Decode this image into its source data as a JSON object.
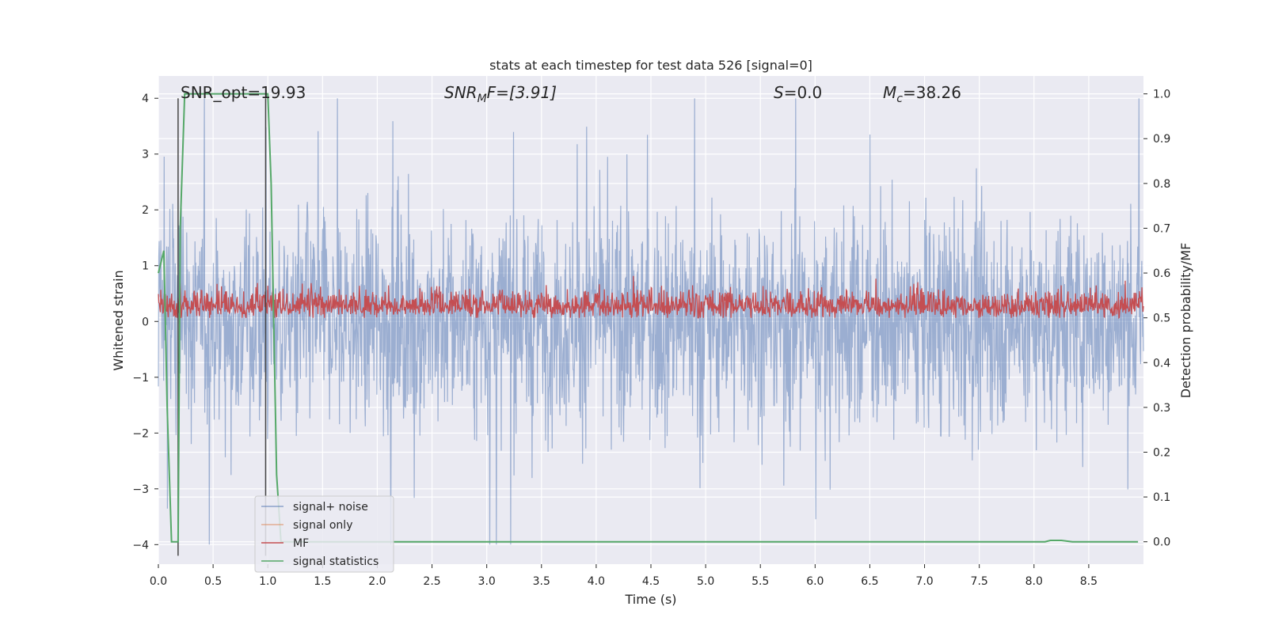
{
  "chart_data": {
    "type": "line",
    "title": "stats at each timestep for test data 526 [signal=0]",
    "xlabel": "Time (s)",
    "ylabel_left": "Whitened strain",
    "ylabel_right": "Detection probability/MF",
    "xlim": [
      0.0,
      9.0
    ],
    "ylim_left": [
      -4.35,
      4.4
    ],
    "ylim_right": [
      -0.05,
      1.04
    ],
    "x_ticks": [
      "0.0",
      "0.5",
      "1.0",
      "1.5",
      "2.0",
      "2.5",
      "3.0",
      "3.5",
      "4.0",
      "4.5",
      "5.0",
      "5.5",
      "6.0",
      "6.5",
      "7.0",
      "7.5",
      "8.0",
      "8.5"
    ],
    "y_ticks_left": [
      "4",
      "3",
      "2",
      "1",
      "0",
      "−1",
      "−2",
      "−3",
      "−4"
    ],
    "y_ticks_right": [
      "1.0",
      "0.9",
      "0.8",
      "0.7",
      "0.6",
      "0.5",
      "0.4",
      "0.3",
      "0.2",
      "0.1",
      "0.0"
    ],
    "annotations": {
      "snr_opt": "SNR_opt=19.93",
      "snr_mf_main": "SNR",
      "snr_mf_sub": "M",
      "snr_mf_rest": "F=[3.91]",
      "s_var": "S",
      "s_rest": "=0.0",
      "mc_main": "M",
      "mc_sub": "c",
      "mc_rest": "=38.26"
    },
    "vertical_lines": [
      0.18,
      0.98
    ],
    "series": [
      {
        "name": "signal+ noise",
        "color": "#4c72b0",
        "axis": "left",
        "noise_amplitude": 4.0
      },
      {
        "name": "signal only",
        "color": "#dd8452",
        "axis": "left",
        "values": []
      },
      {
        "name": "MF",
        "color": "#c44e52",
        "axis": "right",
        "range": [
          0.5,
          0.61
        ]
      },
      {
        "name": "signal statistics",
        "color": "#55a868",
        "axis": "right",
        "x": [
          0.0,
          0.05,
          0.08,
          0.12,
          0.18,
          0.2,
          0.24,
          0.28,
          0.35,
          0.5,
          0.75,
          0.97,
          1.0,
          1.03,
          1.08,
          1.12,
          1.2,
          2.0,
          4.0,
          6.0,
          7.0,
          7.5,
          8.1,
          8.15,
          8.2,
          8.25,
          8.35,
          8.5,
          8.95
        ],
        "values": [
          0.6,
          0.65,
          0.3,
          0.0,
          0.0,
          0.7,
          1.0,
          1.0,
          1.0,
          1.0,
          1.0,
          1.0,
          1.0,
          0.8,
          0.15,
          0.0,
          0.0,
          0.0,
          0.0,
          0.0,
          0.0,
          0.0,
          0.0,
          0.003,
          0.003,
          0.003,
          0.0,
          0.0,
          0.0
        ]
      }
    ],
    "legend_location": "lower-left"
  }
}
